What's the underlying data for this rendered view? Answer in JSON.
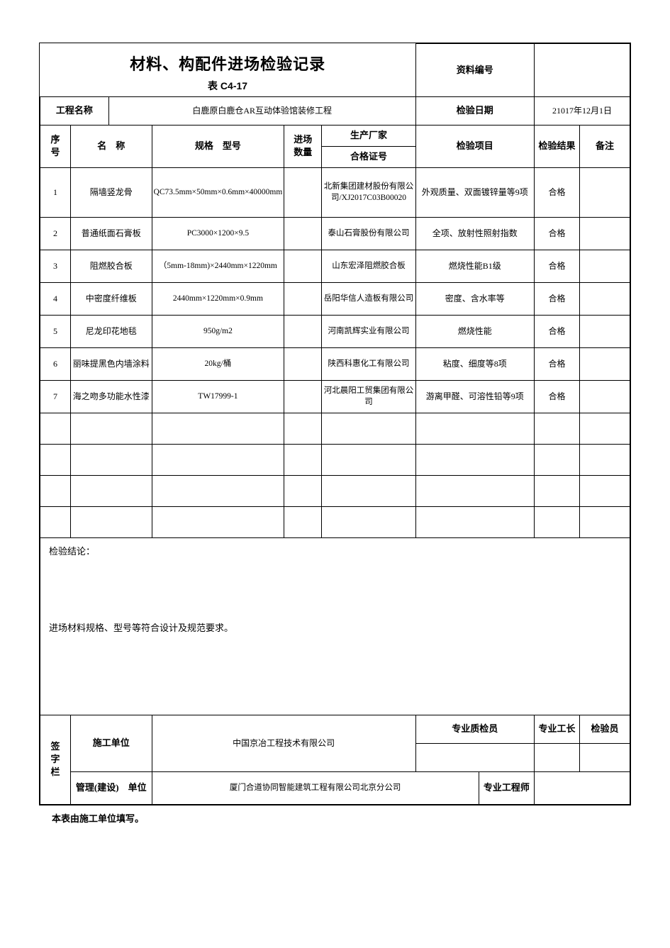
{
  "header": {
    "title": "材料、构配件进场检验记录",
    "subtitle": "表 C4-17",
    "doc_no_label": "资料编号",
    "doc_no_value": ""
  },
  "meta": {
    "project_label": "工程名称",
    "project_value": "白鹿原白鹿仓AR互动体验馆装修工程",
    "date_label": "检验日期",
    "date_value": "21017年12月1日"
  },
  "cols": {
    "seq": "序　号",
    "name": "名　称",
    "spec": "规格　型号",
    "qty": "进场　数量",
    "maker": "生产厂家",
    "cert": "合格证号",
    "item": "检验项目",
    "result": "检验结果",
    "note": "备注"
  },
  "rows": [
    {
      "seq": "1",
      "name": "隔墙竖龙骨",
      "spec": "QC73.5mm×50mm×0.6mm×40000mm",
      "qty": "",
      "maker": "北新集团建材股份有限公司/XJ2017C03B00020",
      "item": "外观质量、双面镀锌量等9项",
      "result": "合格",
      "note": ""
    },
    {
      "seq": "2",
      "name": "普通纸面石膏板",
      "spec": "PC3000×1200×9.5",
      "qty": "",
      "maker": "泰山石膏股份有限公司",
      "item": "全项、放射性照射指数",
      "result": "合格",
      "note": ""
    },
    {
      "seq": "3",
      "name": "阻燃胶合板",
      "spec": "（5mm-18mm)×2440mm×1220mm",
      "qty": "",
      "maker": "山东宏泽阻燃胶合板",
      "item": "燃烧性能B1级",
      "result": "合格",
      "note": ""
    },
    {
      "seq": "4",
      "name": "中密度纤维板",
      "spec": "2440mm×1220mm×0.9mm",
      "qty": "",
      "maker": "岳阳华信人造板有限公司",
      "item": "密度、含水率等",
      "result": "合格",
      "note": ""
    },
    {
      "seq": "5",
      "name": "尼龙印花地毯",
      "spec": "950g/m2",
      "qty": "",
      "maker": "河南凯辉实业有限公司",
      "item": "燃烧性能",
      "result": "合格",
      "note": ""
    },
    {
      "seq": "6",
      "name": "丽味提黑色内墙涂料",
      "spec": "20kg/桶",
      "qty": "",
      "maker": "陕西科惠化工有限公司",
      "item": "粘度、细度等8项",
      "result": "合格",
      "note": ""
    },
    {
      "seq": "7",
      "name": "海之吻多功能水性漆",
      "spec": "TW17999-1",
      "qty": "",
      "maker": "河北晨阳工贸集团有限公司",
      "item": "游离甲醛、可溶性铅等9项",
      "result": "合格",
      "note": ""
    }
  ],
  "empty_rows": 4,
  "conclusion": {
    "label": "检验结论：",
    "text": "进场材料规格、型号等符合设计及规范要求。"
  },
  "sign": {
    "block": "签　字　栏",
    "construction_label": "施工单位",
    "construction_value": "中国京冶工程技术有限公司",
    "qc": "专业质检员",
    "foreman": "专业工长",
    "inspector": "检验员",
    "owner_label": "管理(建设)　单位",
    "owner_value": "厦门合道协同智能建筑工程有限公司北京分公司",
    "engineer": "专业工程师"
  },
  "footnote": "本表由施工单位填写。"
}
